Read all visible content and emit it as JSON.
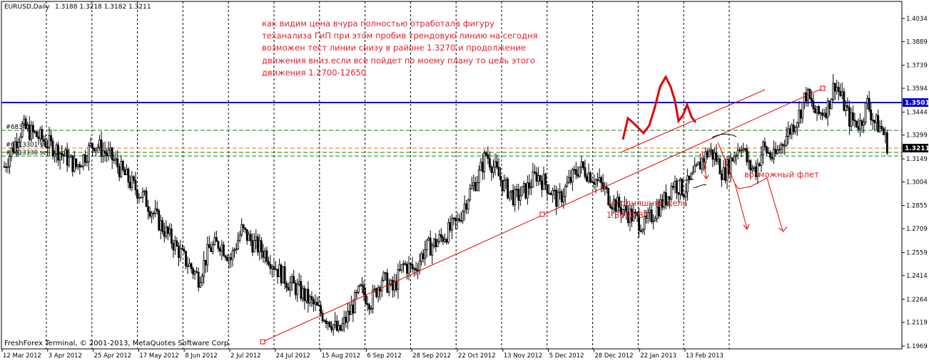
{
  "header": {
    "symbol": "EURUSD,Daily",
    "ohlc": "1.3188 1.3218 1.3182 1.3211"
  },
  "footer": "FreshForex Terminal, © 2001-2013, MetaQuotes Software Corp.",
  "annotations": {
    "main_text": [
      "как видим цена вчура полностью отработала фигуру",
      "теханализа ГиП при этом пробив трендовую линию на сегодня",
      "возможен тест линии снизу в районе 1.3270.и продолжение",
      "движения вниз.если все пойдет по моему плану то цель  этого",
      "движения 1.2700-12650"
    ],
    "target_label": [
      "сегодняшняя цель",
      "1.3050-80"
    ],
    "flat_label": "возможный флет"
  },
  "order_levels": [
    {
      "label": "#68349",
      "price": 1.3329
    },
    {
      "label": "#6813301 sell",
      "price": 1.3217
    },
    {
      "label": "#6813330 sell stop",
      "price": 1.3167
    }
  ],
  "current_price": "1.3211",
  "resistance_price": "1.3501",
  "colors": {
    "note_red": "#e0202a",
    "resistance_blue": "#0000cc",
    "level_green": "#1f7a1f",
    "level_orange": "#d08000",
    "trendline_red": "#e00000",
    "candle": "#000000"
  },
  "chart_data": {
    "type": "candlestick",
    "title": "",
    "instrument": "EURUSD",
    "timeframe": "Daily",
    "x_labels": [
      "12 Mar 2012",
      "3 Apr 2012",
      "25 Apr 2012",
      "17 May 2012",
      "8 Jun 2012",
      "2 Jul 2012",
      "24 Jul 2012",
      "15 Aug 2012",
      "6 Sep 2012",
      "28 Sep 2012",
      "22 Oct 2012",
      "13 Nov 2012",
      "5 Dec 2012",
      "28 Dec 2012",
      "22 Jan 2013",
      "13 Feb 2013"
    ],
    "y_ticks": [
      "1.4034",
      "1.3889",
      "1.3739",
      "1.3594",
      "1.3444",
      "1.3299",
      "1.3149",
      "1.3004",
      "1.2855",
      "1.2709",
      "1.2559",
      "1.2414",
      "1.2264",
      "1.2119",
      "1.1969"
    ],
    "ylim": [
      1.1969,
      1.4184
    ],
    "close_path": [
      [
        0,
        1.31
      ],
      [
        10,
        1.335
      ],
      [
        20,
        1.328
      ],
      [
        30,
        1.32
      ],
      [
        40,
        1.31
      ],
      [
        50,
        1.325
      ],
      [
        60,
        1.315
      ],
      [
        70,
        1.3
      ],
      [
        78,
        1.29
      ],
      [
        86,
        1.275
      ],
      [
        94,
        1.262
      ],
      [
        100,
        1.252
      ],
      [
        108,
        1.24
      ],
      [
        114,
        1.258
      ],
      [
        120,
        1.262
      ],
      [
        126,
        1.252
      ],
      [
        132,
        1.27
      ],
      [
        138,
        1.262
      ],
      [
        146,
        1.255
      ],
      [
        152,
        1.245
      ],
      [
        158,
        1.237
      ],
      [
        164,
        1.232
      ],
      [
        170,
        1.225
      ],
      [
        176,
        1.218
      ],
      [
        182,
        1.212
      ],
      [
        186,
        1.205
      ],
      [
        192,
        1.218
      ],
      [
        198,
        1.232
      ],
      [
        204,
        1.225
      ],
      [
        210,
        1.24
      ],
      [
        216,
        1.232
      ],
      [
        222,
        1.248
      ],
      [
        228,
        1.245
      ],
      [
        234,
        1.258
      ],
      [
        240,
        1.262
      ],
      [
        246,
        1.268
      ],
      [
        252,
        1.275
      ],
      [
        258,
        1.292
      ],
      [
        264,
        1.305
      ],
      [
        268,
        1.318
      ],
      [
        272,
        1.31
      ],
      [
        278,
        1.298
      ],
      [
        284,
        1.29
      ],
      [
        290,
        1.295
      ],
      [
        296,
        1.305
      ],
      [
        302,
        1.298
      ],
      [
        308,
        1.288
      ],
      [
        314,
        1.3
      ],
      [
        320,
        1.31
      ],
      [
        326,
        1.305
      ],
      [
        332,
        1.298
      ],
      [
        338,
        1.288
      ],
      [
        344,
        1.283
      ],
      [
        350,
        1.278
      ],
      [
        356,
        1.273
      ],
      [
        362,
        1.282
      ],
      [
        368,
        1.29
      ],
      [
        372,
        1.3
      ],
      [
        378,
        1.295
      ],
      [
        384,
        1.305
      ],
      [
        388,
        1.314
      ],
      [
        392,
        1.32
      ],
      [
        396,
        1.315
      ],
      [
        400,
        1.305
      ],
      [
        406,
        1.318
      ],
      [
        410,
        1.325
      ],
      [
        414,
        1.31
      ],
      [
        418,
        1.308
      ],
      [
        422,
        1.322
      ],
      [
        428,
        1.315
      ],
      [
        434,
        1.328
      ],
      [
        438,
        1.335
      ],
      [
        442,
        1.343
      ],
      [
        446,
        1.356
      ],
      [
        452,
        1.342
      ],
      [
        458,
        1.348
      ],
      [
        462,
        1.363
      ],
      [
        466,
        1.352
      ],
      [
        470,
        1.34
      ],
      [
        476,
        1.337
      ],
      [
        480,
        1.35
      ],
      [
        484,
        1.338
      ],
      [
        488,
        1.334
      ],
      [
        492,
        1.321
      ]
    ],
    "price_range": {
      "low": 1.2045,
      "high": 1.37
    },
    "current_price": 1.3211,
    "resistance": 1.3501
  }
}
